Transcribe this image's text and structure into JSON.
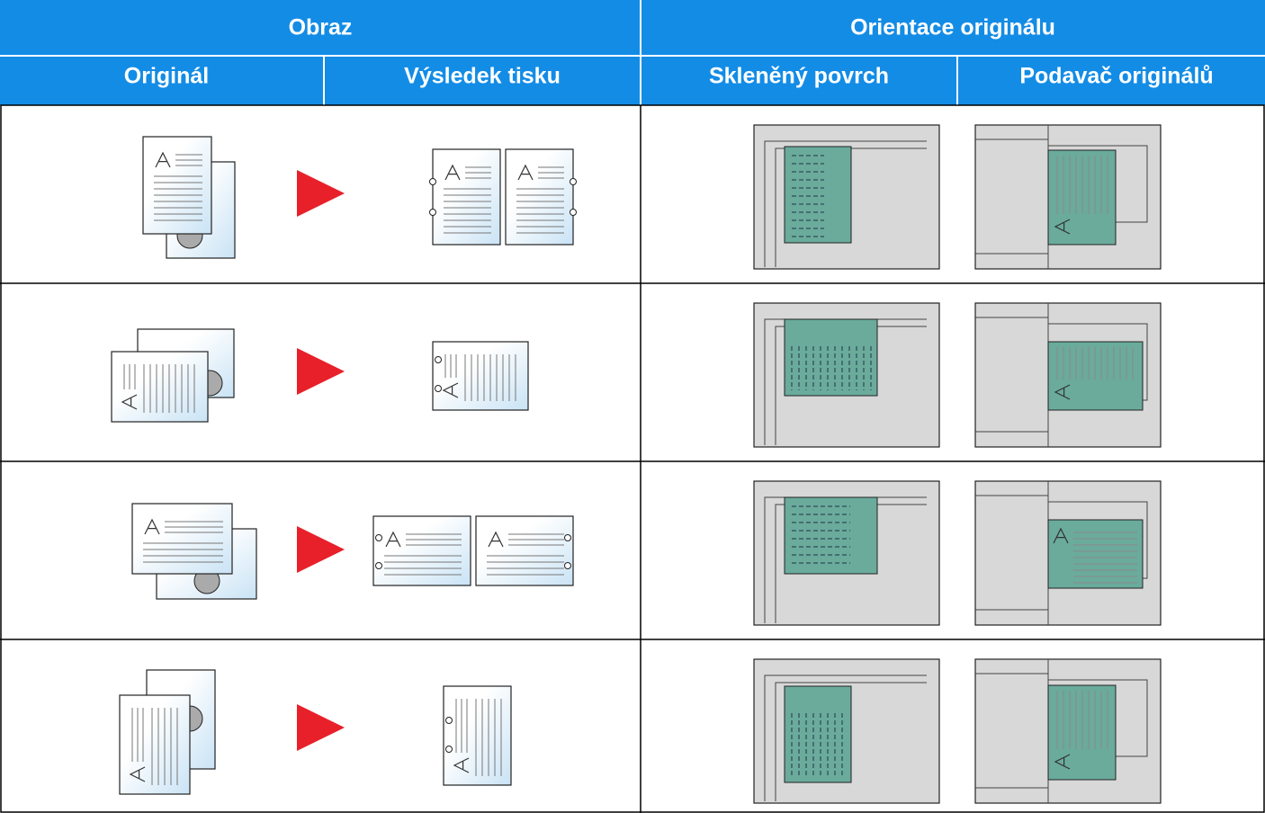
{
  "header": {
    "group_1": "Obraz",
    "group_2": "Orientace originálu",
    "columns": [
      "Originál",
      "Výsledek tisku",
      "Skleněný povrch",
      "Podavač originálů"
    ]
  }
}
